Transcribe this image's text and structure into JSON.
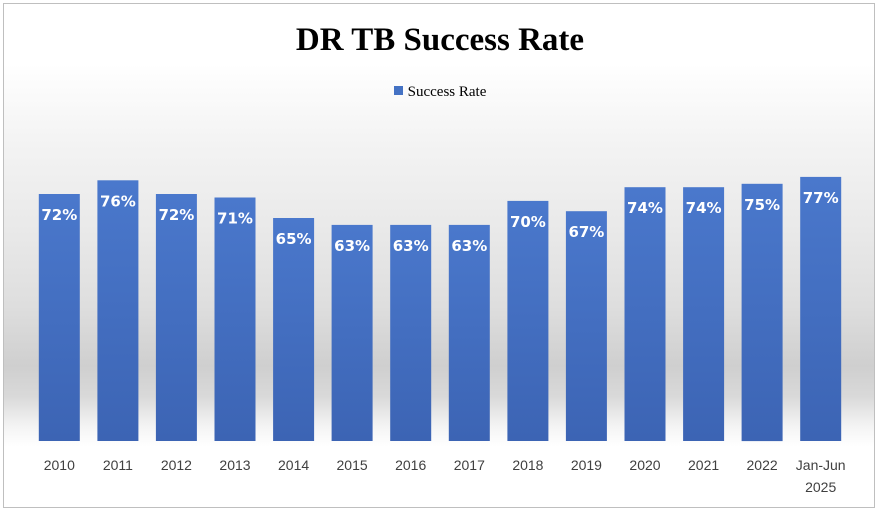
{
  "chart_data": {
    "type": "bar",
    "title": "DR TB Success Rate",
    "categories": [
      "2010",
      "2011",
      "2012",
      "2013",
      "2014",
      "2015",
      "2016",
      "2017",
      "2018",
      "2019",
      "2020",
      "2021",
      "2022",
      "Jan-Jun 2025"
    ],
    "series": [
      {
        "name": "Success Rate",
        "values": [
          72,
          76,
          72,
          71,
          65,
          63,
          63,
          63,
          70,
          67,
          74,
          74,
          75,
          77
        ],
        "labels": [
          "72%",
          "76%",
          "72%",
          "71%",
          "65%",
          "63%",
          "63%",
          "63%",
          "70%",
          "67%",
          "74%",
          "74%",
          "75%",
          "77%"
        ],
        "color": "#4472c4"
      }
    ],
    "legend_position": "top",
    "grid": false
  }
}
